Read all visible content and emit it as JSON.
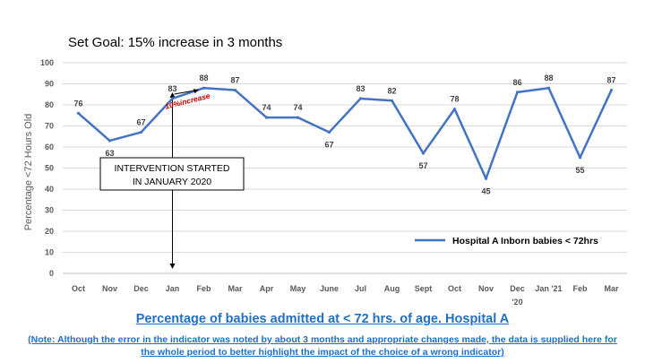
{
  "chart_data": {
    "type": "line",
    "title": "Set Goal: 15% increase in 3 months",
    "ylabel": "Percentage <72 Hours Old",
    "xlabel": "",
    "ylim": [
      0,
      100
    ],
    "yticks": [
      0,
      10,
      20,
      30,
      40,
      50,
      60,
      70,
      80,
      90,
      100
    ],
    "categories": [
      "Oct",
      "Nov",
      "Dec",
      "Jan",
      "Feb",
      "Mar",
      "Apr",
      "May",
      "June",
      "Jul",
      "Aug",
      "Sept",
      "Oct",
      "Nov",
      "Dec '20",
      "Jan '21",
      "Feb",
      "Mar"
    ],
    "category_lines": [
      [
        "Oct"
      ],
      [
        "Nov"
      ],
      [
        "Dec"
      ],
      [
        "Jan"
      ],
      [
        "Feb"
      ],
      [
        "Mar"
      ],
      [
        "Apr"
      ],
      [
        "May"
      ],
      [
        "June"
      ],
      [
        "Jul"
      ],
      [
        "Aug"
      ],
      [
        "Sept"
      ],
      [
        "Oct"
      ],
      [
        "Nov"
      ],
      [
        "Dec",
        "'20"
      ],
      [
        "Jan '21"
      ],
      [
        "Feb"
      ],
      [
        "Mar"
      ]
    ],
    "series": [
      {
        "name": "Hospital A Inborn babies < 72hrs",
        "values": [
          76,
          63,
          67,
          83,
          88,
          87,
          74,
          74,
          67,
          83,
          82,
          57,
          78,
          45,
          86,
          88,
          55,
          87
        ],
        "color": "#4472c4"
      }
    ],
    "legend": "bottom-right",
    "grid": true,
    "annotations": {
      "intervention": [
        "INTERVENTION STARTED",
        "IN JANUARY 2020"
      ],
      "increase": "10%increase"
    }
  },
  "caption": {
    "title": "Percentage of babies admitted at < 72 hrs. of age. Hospital A",
    "note": "(Note: Although the error in the indicator was noted by about 3 months and appropriate changes made, the data is supplied here for the whole period to better highlight the impact of the choice of a wrong indicator)"
  }
}
